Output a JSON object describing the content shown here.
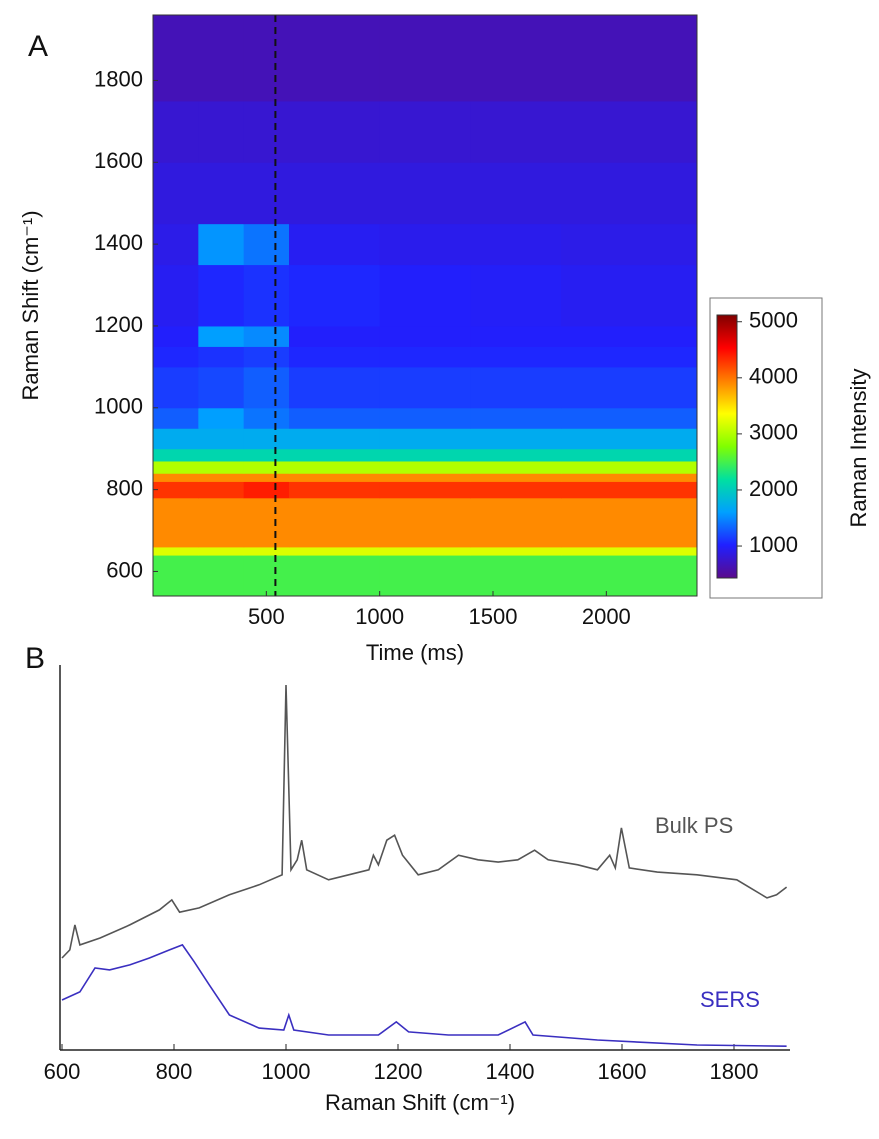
{
  "chart_data": [
    {
      "type": "heatmap",
      "panel_label": "A",
      "x_label": "Time (ms)",
      "y_label": "Raman Shift (cm⁻¹)",
      "xlim": [
        0,
        2400
      ],
      "ylim": [
        540,
        1960
      ],
      "xticks": [
        500,
        1000,
        1500,
        2000
      ],
      "yticks": [
        600,
        800,
        1000,
        1200,
        1400,
        1600,
        1800
      ],
      "x_bins": [
        0,
        200,
        400,
        600,
        1000,
        1400,
        1800,
        2400
      ],
      "y_bins": [
        540,
        640,
        660,
        780,
        820,
        840,
        870,
        900,
        950,
        1000,
        1100,
        1150,
        1200,
        1350,
        1450,
        1600,
        1750,
        1960
      ],
      "values": [
        [
          2500,
          2500,
          2500,
          2500,
          2500,
          2500,
          2500
        ],
        [
          3200,
          3200,
          3200,
          3200,
          3200,
          3200,
          3200
        ],
        [
          3900,
          3900,
          3900,
          3900,
          3900,
          3900,
          3900
        ],
        [
          4300,
          4300,
          4400,
          4300,
          4300,
          4300,
          4300
        ],
        [
          3900,
          3900,
          3900,
          3900,
          3900,
          3900,
          3900
        ],
        [
          3000,
          3000,
          3000,
          3000,
          3000,
          3000,
          3000
        ],
        [
          2100,
          2100,
          2100,
          2100,
          2100,
          2100,
          2100
        ],
        [
          1700,
          1700,
          1700,
          1700,
          1700,
          1700,
          1700
        ],
        [
          1300,
          1600,
          1400,
          1300,
          1300,
          1300,
          1300
        ],
        [
          1150,
          1200,
          1300,
          1150,
          1150,
          1150,
          1150
        ],
        [
          1050,
          1100,
          1150,
          1050,
          1050,
          1050,
          1050
        ],
        [
          1000,
          1600,
          1500,
          1000,
          1000,
          1000,
          1000
        ],
        [
          950,
          1050,
          1100,
          1050,
          1000,
          980,
          950
        ],
        [
          900,
          1550,
          1400,
          950,
          920,
          920,
          900
        ],
        [
          850,
          850,
          850,
          850,
          850,
          850,
          850
        ],
        [
          780,
          780,
          780,
          780,
          780,
          780,
          780
        ],
        [
          650,
          650,
          650,
          650,
          650,
          650,
          650
        ]
      ],
      "vline": 540,
      "colorbar": {
        "label": "Raman Intensity",
        "lim": [
          430,
          5120
        ],
        "ticks": [
          1000,
          2000,
          3000,
          4000,
          5000
        ],
        "colorscale": [
          "#5a0a8c",
          "#2020ff",
          "#00a0ff",
          "#00e0a0",
          "#80ff00",
          "#ffff00",
          "#ff8000",
          "#ff0000",
          "#800000"
        ]
      }
    },
    {
      "type": "line",
      "panel_label": "B",
      "x_label": "Raman Shift (cm⁻¹)",
      "xlim": [
        600,
        1900
      ],
      "ylim": [
        0,
        100
      ],
      "xticks": [
        600,
        800,
        1000,
        1200,
        1400,
        1600,
        1800
      ],
      "series": [
        {
          "name": "Bulk PS",
          "color": "#555555",
          "x": [
            600,
            614,
            623,
            632,
            668,
            721,
            774,
            796,
            810,
            845,
            899,
            952,
            993,
            1000,
            1009,
            1020,
            1028,
            1037,
            1076,
            1112,
            1148,
            1156,
            1165,
            1180,
            1194,
            1208,
            1236,
            1272,
            1308,
            1343,
            1379,
            1414,
            1444,
            1468,
            1521,
            1556,
            1578,
            1588,
            1599,
            1613,
            1663,
            1734,
            1805,
            1859,
            1876,
            1894
          ],
          "values": [
            23.9,
            26,
            32.5,
            27.3,
            29.1,
            32.5,
            36.4,
            39,
            35.8,
            36.9,
            40.3,
            42.9,
            45.5,
            94.8,
            46.8,
            49.4,
            54.5,
            46.8,
            44.2,
            45.5,
            46.8,
            50.6,
            48.1,
            54.5,
            55.8,
            50.6,
            45.5,
            46.8,
            50.6,
            49.4,
            48.8,
            49.4,
            51.9,
            49.4,
            48.1,
            46.8,
            50.6,
            47.3,
            57.7,
            47.3,
            46.2,
            45.5,
            44.2,
            39.5,
            40.3,
            42.3
          ]
        },
        {
          "name": "SERS",
          "color": "#3a2fc0",
          "x": [
            600,
            632,
            659,
            685,
            721,
            756,
            792,
            815,
            836,
            863,
            899,
            952,
            996,
            1005,
            1014,
            1076,
            1165,
            1197,
            1219,
            1290,
            1379,
            1427,
            1441,
            1556,
            1734,
            1894
          ],
          "values": [
            13,
            15.1,
            21.3,
            20.8,
            22.1,
            23.9,
            26,
            27.3,
            22.9,
            16.9,
            9.1,
            5.7,
            5.2,
            9.1,
            5.2,
            3.9,
            3.9,
            7.3,
            4.7,
            3.9,
            3.9,
            7.3,
            3.9,
            2.6,
            1.3,
            1
          ]
        }
      ]
    }
  ]
}
